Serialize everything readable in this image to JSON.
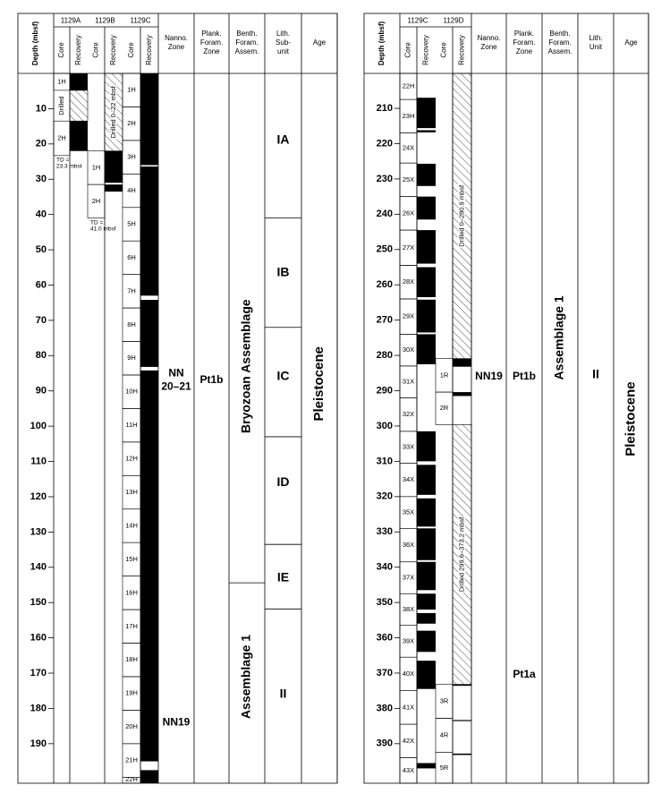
{
  "panels": [
    {
      "depth_axis": {
        "label": "Depth (mbsf)",
        "range": [
          0,
          201.2
        ],
        "ticks": [
          10,
          20,
          30,
          40,
          50,
          60,
          70,
          80,
          90,
          100,
          110,
          120,
          130,
          140,
          150,
          160,
          170,
          180,
          190
        ]
      },
      "holes": [
        {
          "name": "1129A",
          "core_label": "Core",
          "recovery_label": "Recovery",
          "cores": [
            {
              "label": "1H",
              "top": 0,
              "bottom": 4.8
            },
            {
              "label": "2H",
              "top": 13.5,
              "bottom": 23.3
            }
          ],
          "recovered": [
            [
              0,
              4.8
            ],
            [
              13.5,
              22
            ]
          ],
          "drilled": [
            {
              "top": 4.8,
              "bottom": 13.5,
              "label": "Drilled",
              "label_in": "core"
            }
          ],
          "note": [
            "TD =",
            "23.3 mbst"
          ]
        },
        {
          "name": "1129B",
          "core_label": "Core",
          "recovery_label": "Recovery",
          "cores": [
            {
              "label": "1H",
              "top": 22,
              "bottom": 31.5
            },
            {
              "label": "2H",
              "top": 31.5,
              "bottom": 41
            }
          ],
          "recovered": [
            [
              22,
              31
            ],
            [
              31.5,
              33.5
            ]
          ],
          "drilled": [
            {
              "top": 0,
              "bottom": 22,
              "label": "Drilled 0–22 mbsf",
              "label_in": "recovery"
            }
          ],
          "note": [
            "TD =",
            "41.0 mbsf"
          ]
        },
        {
          "name": "1129C",
          "core_label": "Core",
          "recovery_label": "Recovery",
          "cores": [
            {
              "label": "1H",
              "top": 0,
              "bottom": 9.5
            },
            {
              "label": "2H",
              "top": 9.5,
              "bottom": 19
            },
            {
              "label": "3H",
              "top": 19,
              "bottom": 28.5
            },
            {
              "label": "4H",
              "top": 28.5,
              "bottom": 38
            },
            {
              "label": "5H",
              "top": 38,
              "bottom": 47.5
            },
            {
              "label": "6H",
              "top": 47.5,
              "bottom": 57
            },
            {
              "label": "7H",
              "top": 57,
              "bottom": 66.5
            },
            {
              "label": "8H",
              "top": 66.5,
              "bottom": 76
            },
            {
              "label": "9H",
              "top": 76,
              "bottom": 85.5
            },
            {
              "label": "10H",
              "top": 85.5,
              "bottom": 95
            },
            {
              "label": "11H",
              "top": 95,
              "bottom": 104.5
            },
            {
              "label": "12H",
              "top": 104.5,
              "bottom": 114
            },
            {
              "label": "13H",
              "top": 114,
              "bottom": 123.5
            },
            {
              "label": "14H",
              "top": 123.5,
              "bottom": 133
            },
            {
              "label": "15H",
              "top": 133,
              "bottom": 142.5
            },
            {
              "label": "16H",
              "top": 142.5,
              "bottom": 152
            },
            {
              "label": "17H",
              "top": 152,
              "bottom": 161.5
            },
            {
              "label": "18H",
              "top": 161.5,
              "bottom": 171
            },
            {
              "label": "19H",
              "top": 171,
              "bottom": 180.5
            },
            {
              "label": "20H",
              "top": 180.5,
              "bottom": 190
            },
            {
              "label": "21H",
              "top": 190,
              "bottom": 199.5
            },
            {
              "label": "22H",
              "top": 199.5,
              "bottom": 201.2
            }
          ],
          "recovered": [
            [
              0,
              26
            ],
            [
              26.4,
              63
            ],
            [
              64.2,
              83.2
            ],
            [
              84.2,
              195
            ],
            [
              197.5,
              201.2
            ]
          ],
          "drilled": [],
          "note": []
        }
      ],
      "columns": [
        {
          "header": [
            "Nanno.",
            "Zone"
          ],
          "rotated": false,
          "style": "zl",
          "boundaries": [],
          "labels": [
            {
              "text": [
                "NN",
                "20–21"
              ],
              "depth": 87
            },
            {
              "text": [
                "NN19"
              ],
              "depth": 184
            }
          ]
        },
        {
          "header": [
            "Plank.",
            "Foram.",
            "Zone"
          ],
          "rotated": false,
          "style": "zl",
          "boundaries": [],
          "labels": [
            {
              "text": [
                "Pt1b"
              ],
              "depth": 87
            }
          ]
        },
        {
          "header": [
            "Benth.",
            "Foram.",
            "Assem."
          ],
          "rotated": true,
          "style": "ll",
          "boundaries": [
            144.4
          ],
          "labels": [
            {
              "text": [
                "Bryozoan Assemblage"
              ],
              "depth": 83
            },
            {
              "text": [
                "Assemblage 1"
              ],
              "depth": 171
            }
          ]
        },
        {
          "header": [
            "Lith.",
            "Sub-",
            "unit"
          ],
          "rotated": false,
          "style": "ll",
          "boundaries": [
            41,
            72,
            103,
            133.5,
            151.8
          ],
          "labels": [
            {
              "text": [
                "IA"
              ],
              "depth": 19
            },
            {
              "text": [
                "IB"
              ],
              "depth": 56.5
            },
            {
              "text": [
                "IC"
              ],
              "depth": 86
            },
            {
              "text": [
                "ID"
              ],
              "depth": 116
            },
            {
              "text": [
                "IE"
              ],
              "depth": 143
            },
            {
              "text": [
                "II"
              ],
              "depth": 176
            }
          ]
        },
        {
          "header": [
            "Age"
          ],
          "rotated": true,
          "style": "rl",
          "boundaries": [],
          "labels": [
            {
              "text": [
                "Pleistocene"
              ],
              "depth": 88
            }
          ]
        }
      ]
    },
    {
      "depth_axis": {
        "label": "Depth (mbsf)",
        "range": [
          200.1,
          401.2
        ],
        "ticks": [
          210,
          220,
          230,
          240,
          250,
          260,
          270,
          280,
          290,
          300,
          310,
          320,
          330,
          340,
          350,
          360,
          370,
          380,
          390
        ]
      },
      "holes": [
        {
          "name": "1129C",
          "core_label": "Core",
          "recovery_label": "Recovery",
          "cores": [
            {
              "label": "22H",
              "top": 200.1,
              "bottom": 207.5
            },
            {
              "label": "23H",
              "top": 207.5,
              "bottom": 217
            },
            {
              "label": "24X",
              "top": 217,
              "bottom": 225.5
            },
            {
              "label": "25X",
              "top": 225.5,
              "bottom": 235
            },
            {
              "label": "26X",
              "top": 235,
              "bottom": 244.5
            },
            {
              "label": "27X",
              "top": 244.5,
              "bottom": 254.5
            },
            {
              "label": "28X",
              "top": 254.5,
              "bottom": 264
            },
            {
              "label": "29X",
              "top": 264,
              "bottom": 274
            },
            {
              "label": "30X",
              "top": 274,
              "bottom": 283
            },
            {
              "label": "31X",
              "top": 283,
              "bottom": 292
            },
            {
              "label": "32X",
              "top": 292,
              "bottom": 301.5
            },
            {
              "label": "33X",
              "top": 301.5,
              "bottom": 310.5
            },
            {
              "label": "34X",
              "top": 310.5,
              "bottom": 320
            },
            {
              "label": "35X",
              "top": 320,
              "bottom": 329
            },
            {
              "label": "36X",
              "top": 329,
              "bottom": 338.5
            },
            {
              "label": "37X",
              "top": 338.5,
              "bottom": 347.5
            },
            {
              "label": "38X",
              "top": 347.5,
              "bottom": 356.5
            },
            {
              "label": "39X",
              "top": 356.5,
              "bottom": 365.5
            },
            {
              "label": "40X",
              "top": 365.5,
              "bottom": 375
            },
            {
              "label": "41X",
              "top": 375,
              "bottom": 384.5
            },
            {
              "label": "42X",
              "top": 384.5,
              "bottom": 394
            },
            {
              "label": "43X",
              "top": 394,
              "bottom": 401.2
            }
          ],
          "recovered": [
            [
              207,
              215.6
            ],
            [
              216.2,
              216.8
            ],
            [
              225.7,
              232
            ],
            [
              235,
              241.5
            ],
            [
              244.5,
              254
            ],
            [
              255,
              263.5
            ],
            [
              264.2,
              273.5
            ],
            [
              274,
              282.5
            ],
            [
              301.5,
              310
            ],
            [
              311,
              319.5
            ],
            [
              320.5,
              328.5
            ],
            [
              329,
              338
            ],
            [
              338.5,
              346.5
            ],
            [
              347.5,
              352
            ],
            [
              353,
              356
            ],
            [
              358,
              364
            ],
            [
              366.5,
              374.5
            ],
            [
              395.5,
              397
            ]
          ],
          "drilled": [],
          "note": []
        },
        {
          "name": "1129D",
          "core_label": "Core",
          "recovery_label": "Recovery",
          "cores": [
            {
              "label": "1R",
              "top": 280.9,
              "bottom": 290.4
            },
            {
              "label": "2R",
              "top": 290.4,
              "bottom": 299.6
            },
            {
              "label": "3R",
              "top": 373.2,
              "bottom": 382.8
            },
            {
              "label": "4R",
              "top": 382.8,
              "bottom": 392.5
            },
            {
              "label": "5R",
              "top": 392.5,
              "bottom": 401.2
            }
          ],
          "recovered": [
            [
              280.9,
              283.2
            ],
            [
              290.4,
              291.5
            ],
            [
              373.2,
              373.6
            ],
            [
              383.3,
              383.6
            ],
            [
              392.8,
              393.2
            ]
          ],
          "drilled": [
            {
              "top": 200.1,
              "bottom": 280.9,
              "label": "Drilled 0–280.9 mbsf",
              "label_in": "recovery"
            },
            {
              "top": 299.6,
              "bottom": 373.2,
              "label": "Drilled 299.6–373.2 mbsf",
              "label_in": "recovery"
            }
          ],
          "note": []
        }
      ],
      "columns": [
        {
          "header": [
            "Nanno.",
            "Zone"
          ],
          "rotated": false,
          "style": "zl",
          "boundaries": [],
          "labels": [
            {
              "text": [
                "NN19"
              ],
              "depth": 286
            }
          ]
        },
        {
          "header": [
            "Plank.",
            "Foram.",
            "Zone"
          ],
          "rotated": false,
          "style": "zl",
          "boundaries": [],
          "labels": [
            {
              "text": [
                "Pt1b"
              ],
              "depth": 286
            },
            {
              "text": [
                "Pt1a"
              ],
              "depth": 370.5
            }
          ]
        },
        {
          "header": [
            "Benth.",
            "Foram.",
            "Assem."
          ],
          "rotated": true,
          "style": "ll",
          "boundaries": [],
          "labels": [
            {
              "text": [
                "Assemblage 1"
              ],
              "depth": 275
            }
          ]
        },
        {
          "header": [
            "Lith.",
            "Unit"
          ],
          "rotated": false,
          "style": "ll",
          "boundaries": [],
          "labels": [
            {
              "text": [
                "II"
              ],
              "depth": 285.5
            }
          ]
        },
        {
          "header": [
            "Age"
          ],
          "rotated": true,
          "style": "rl",
          "boundaries": [],
          "labels": [
            {
              "text": [
                "Pleistocene"
              ],
              "depth": 298
            }
          ]
        }
      ]
    }
  ]
}
